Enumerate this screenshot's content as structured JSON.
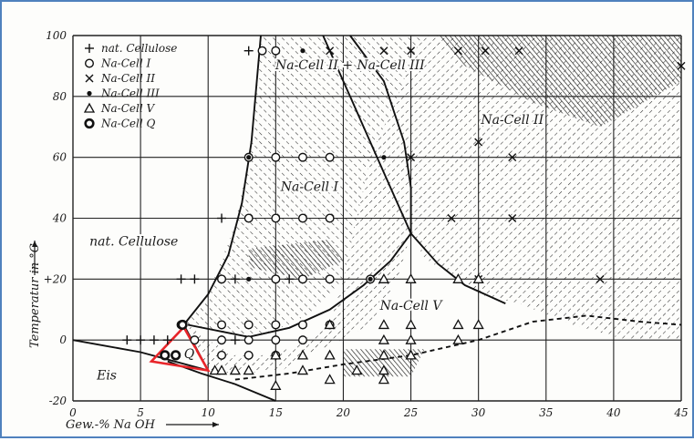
{
  "chart_data": {
    "type": "scatter",
    "title": "",
    "xlabel": "Gew.-% Na OH",
    "ylabel": "Temperatur in °C",
    "xlim": [
      0,
      45
    ],
    "ylim": [
      -20,
      100
    ],
    "x_ticks": [
      "0",
      "5",
      "10",
      "15",
      "20",
      "25",
      "30",
      "35",
      "40",
      "45"
    ],
    "y_ticks": [
      "-20",
      "0",
      "+20",
      "40",
      "60",
      "80",
      "100"
    ],
    "grid": true,
    "legend_position": "top-left",
    "legend": [
      {
        "symbol": "plus",
        "label": "nat. Cellulose"
      },
      {
        "symbol": "circle",
        "label": "Na-Cell I"
      },
      {
        "symbol": "cross",
        "label": "Na-Cell II"
      },
      {
        "symbol": "dot",
        "label": "Na-Cell III"
      },
      {
        "symbol": "triangle",
        "label": "Na-Cell V"
      },
      {
        "symbol": "bold-circle",
        "label": "Na-Cell Q"
      }
    ],
    "region_labels": [
      {
        "text": "nat. Cellulose",
        "x": 4.5,
        "y": 31
      },
      {
        "text": "Na-Cell I",
        "x": 17.5,
        "y": 49
      },
      {
        "text": "Na-Cell II + Na-Cell III",
        "x": 20.5,
        "y": 89
      },
      {
        "text": "Na-Cell II",
        "x": 32.5,
        "y": 71
      },
      {
        "text": "Na-Cell V",
        "x": 25,
        "y": 10
      },
      {
        "text": "Eis",
        "x": 2.5,
        "y": -13
      },
      {
        "text": "Q",
        "x": 8.6,
        "y": -6
      }
    ],
    "series": [
      {
        "symbol": "plus",
        "points": [
          [
            13,
            95
          ],
          [
            11,
            40
          ],
          [
            8,
            20
          ],
          [
            9,
            20
          ],
          [
            12,
            20
          ],
          [
            16,
            20
          ],
          [
            4,
            0
          ],
          [
            5,
            0
          ],
          [
            6,
            0
          ],
          [
            7,
            0
          ],
          [
            11,
            0
          ],
          [
            12,
            0
          ]
        ]
      },
      {
        "symbol": "circle",
        "points": [
          [
            14,
            95
          ],
          [
            15,
            95
          ],
          [
            13,
            60
          ],
          [
            15,
            60
          ],
          [
            17,
            60
          ],
          [
            19,
            60
          ],
          [
            13,
            40
          ],
          [
            15,
            40
          ],
          [
            17,
            40
          ],
          [
            19,
            40
          ],
          [
            11,
            20
          ],
          [
            15,
            20
          ],
          [
            17,
            20
          ],
          [
            19,
            20
          ],
          [
            22,
            20
          ],
          [
            8,
            5
          ],
          [
            11,
            5
          ],
          [
            13,
            5
          ],
          [
            15,
            5
          ],
          [
            17,
            5
          ],
          [
            19,
            5
          ],
          [
            9,
            0
          ],
          [
            11,
            0
          ],
          [
            13,
            0
          ],
          [
            15,
            0
          ],
          [
            17,
            0
          ],
          [
            11,
            -5
          ],
          [
            13,
            -5
          ],
          [
            15,
            -5
          ]
        ]
      },
      {
        "symbol": "cross",
        "points": [
          [
            19,
            95
          ],
          [
            23,
            95
          ],
          [
            25,
            95
          ],
          [
            28.5,
            95
          ],
          [
            30.5,
            95
          ],
          [
            33,
            95
          ],
          [
            45,
            90
          ],
          [
            25,
            60
          ],
          [
            32.5,
            60
          ],
          [
            28,
            40
          ],
          [
            32.5,
            40
          ],
          [
            30,
            20
          ],
          [
            39,
            20
          ],
          [
            30,
            65
          ]
        ]
      },
      {
        "symbol": "dot",
        "points": [
          [
            17,
            95
          ],
          [
            13,
            60
          ],
          [
            23,
            60
          ],
          [
            13,
            20
          ],
          [
            19,
            5
          ],
          [
            22,
            20
          ]
        ]
      },
      {
        "symbol": "triangle",
        "points": [
          [
            23,
            20
          ],
          [
            25,
            20
          ],
          [
            28.5,
            20
          ],
          [
            30,
            20
          ],
          [
            23,
            5
          ],
          [
            25,
            5
          ],
          [
            28.5,
            5
          ],
          [
            30,
            5
          ],
          [
            23,
            0
          ],
          [
            25,
            0
          ],
          [
            28.5,
            0
          ],
          [
            19,
            5
          ],
          [
            10.5,
            -10
          ],
          [
            11,
            -10
          ],
          [
            12,
            -10
          ],
          [
            15,
            -5
          ],
          [
            17,
            -5
          ],
          [
            19,
            -5
          ],
          [
            23,
            -5
          ],
          [
            25,
            -5
          ],
          [
            13,
            -10
          ],
          [
            17,
            -10
          ],
          [
            21,
            -10
          ],
          [
            23,
            -10
          ],
          [
            15,
            -15
          ],
          [
            19,
            -13
          ],
          [
            23,
            -13
          ]
        ]
      },
      {
        "symbol": "bold-circle",
        "points": [
          [
            6.8,
            -5
          ],
          [
            7.6,
            -5
          ],
          [
            8.1,
            5
          ]
        ]
      }
    ]
  }
}
